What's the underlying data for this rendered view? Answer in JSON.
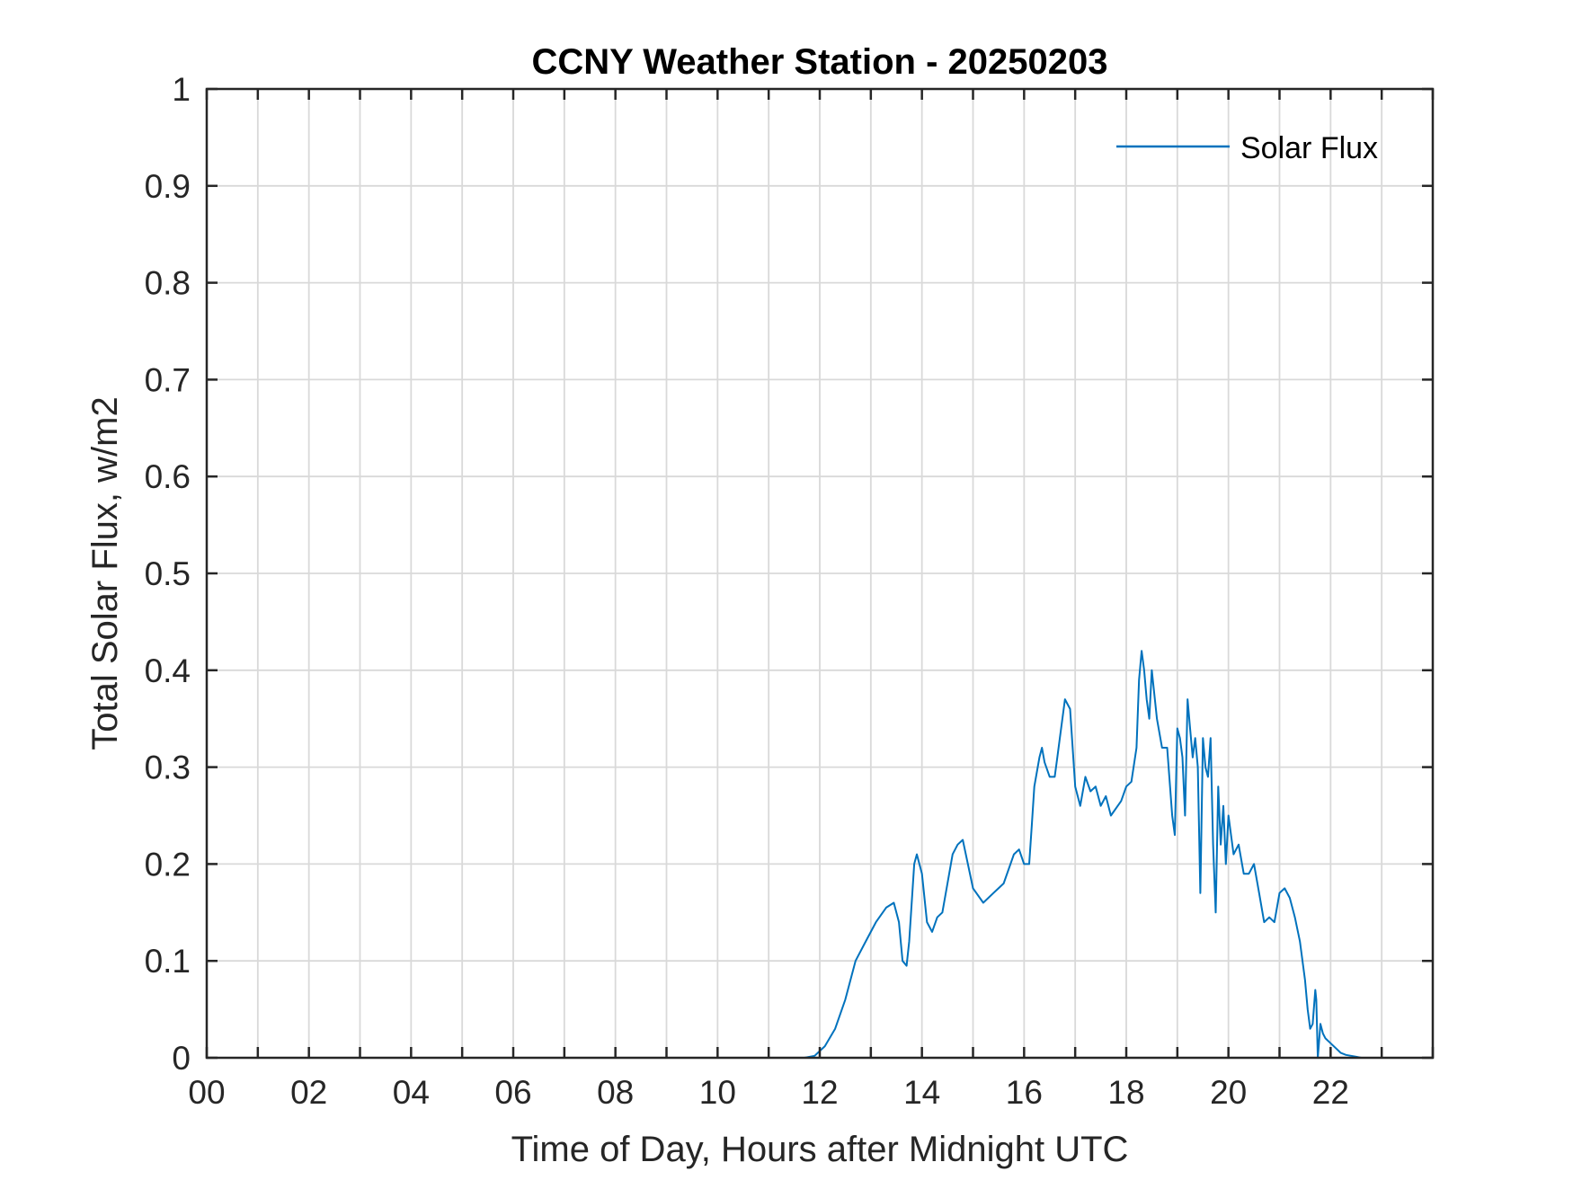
{
  "chart_data": {
    "type": "line",
    "title": "CCNY Weather Station - 20250203",
    "xlabel": "Time of Day, Hours after Midnight UTC",
    "ylabel": "Total Solar Flux, w/m2",
    "xlim": [
      0,
      24
    ],
    "ylim": [
      0,
      1
    ],
    "x_ticks": [
      0,
      2,
      4,
      6,
      8,
      10,
      12,
      14,
      16,
      18,
      20,
      22
    ],
    "x_tick_labels": [
      "00",
      "02",
      "04",
      "06",
      "08",
      "10",
      "12",
      "14",
      "16",
      "18",
      "20",
      "22"
    ],
    "y_ticks": [
      0,
      0.1,
      0.2,
      0.3,
      0.4,
      0.5,
      0.6,
      0.7,
      0.8,
      0.9,
      1
    ],
    "y_tick_labels": [
      "0",
      "0.1",
      "0.2",
      "0.3",
      "0.4",
      "0.5",
      "0.6",
      "0.7",
      "0.8",
      "0.9",
      "1"
    ],
    "grid": true,
    "legend_position": "top-right",
    "series": [
      {
        "name": "Solar Flux",
        "color": "#0072BD",
        "x": [
          0,
          11.7,
          11.9,
          12.1,
          12.3,
          12.5,
          12.7,
          12.9,
          13.1,
          13.3,
          13.45,
          13.55,
          13.62,
          13.7,
          13.75,
          13.8,
          13.85,
          13.9,
          14.0,
          14.1,
          14.2,
          14.3,
          14.4,
          14.5,
          14.6,
          14.65,
          14.7,
          14.8,
          14.9,
          15.0,
          15.2,
          15.4,
          15.5,
          15.6,
          15.8,
          15.9,
          16.0,
          16.1,
          16.15,
          16.2,
          16.3,
          16.35,
          16.4,
          16.5,
          16.6,
          16.65,
          16.7,
          16.8,
          16.9,
          17.0,
          17.1,
          17.2,
          17.3,
          17.4,
          17.5,
          17.6,
          17.7,
          17.9,
          18.0,
          18.1,
          18.2,
          18.25,
          18.3,
          18.35,
          18.4,
          18.45,
          18.5,
          18.6,
          18.7,
          18.75,
          18.8,
          18.9,
          18.95,
          19.0,
          19.05,
          19.1,
          19.15,
          19.2,
          19.25,
          19.3,
          19.35,
          19.4,
          19.45,
          19.5,
          19.55,
          19.6,
          19.65,
          19.7,
          19.75,
          19.8,
          19.85,
          19.9,
          19.95,
          20.0,
          20.1,
          20.2,
          20.3,
          20.4,
          20.5,
          20.6,
          20.7,
          20.8,
          20.9,
          21.0,
          21.1,
          21.2,
          21.3,
          21.4,
          21.5,
          21.55,
          21.6,
          21.65,
          21.7,
          21.72,
          21.75,
          21.8,
          21.85,
          21.9,
          22.0,
          22.1,
          22.2,
          22.3,
          22.4,
          22.5,
          22.6,
          24.0
        ],
        "y": [
          0,
          0,
          0.002,
          0.012,
          0.03,
          0.06,
          0.1,
          0.12,
          0.14,
          0.155,
          0.16,
          0.14,
          0.1,
          0.095,
          0.12,
          0.16,
          0.2,
          0.21,
          0.19,
          0.14,
          0.13,
          0.145,
          0.15,
          0.18,
          0.21,
          0.215,
          0.22,
          0.225,
          0.2,
          0.175,
          0.16,
          0.17,
          0.175,
          0.18,
          0.21,
          0.215,
          0.2,
          0.2,
          0.24,
          0.28,
          0.31,
          0.32,
          0.305,
          0.29,
          0.29,
          0.31,
          0.33,
          0.37,
          0.36,
          0.28,
          0.26,
          0.29,
          0.275,
          0.28,
          0.26,
          0.27,
          0.25,
          0.265,
          0.28,
          0.285,
          0.32,
          0.39,
          0.42,
          0.4,
          0.37,
          0.35,
          0.4,
          0.35,
          0.32,
          0.32,
          0.32,
          0.25,
          0.23,
          0.34,
          0.33,
          0.31,
          0.25,
          0.37,
          0.34,
          0.31,
          0.33,
          0.3,
          0.17,
          0.33,
          0.3,
          0.29,
          0.33,
          0.22,
          0.15,
          0.28,
          0.22,
          0.26,
          0.2,
          0.25,
          0.21,
          0.22,
          0.19,
          0.19,
          0.2,
          0.17,
          0.14,
          0.145,
          0.14,
          0.17,
          0.175,
          0.165,
          0.145,
          0.12,
          0.08,
          0.05,
          0.03,
          0.035,
          0.07,
          0.06,
          0.0,
          0.035,
          0.025,
          0.02,
          0.015,
          0.01,
          0.005,
          0.003,
          0.002,
          0.001,
          0,
          0
        ]
      }
    ]
  }
}
